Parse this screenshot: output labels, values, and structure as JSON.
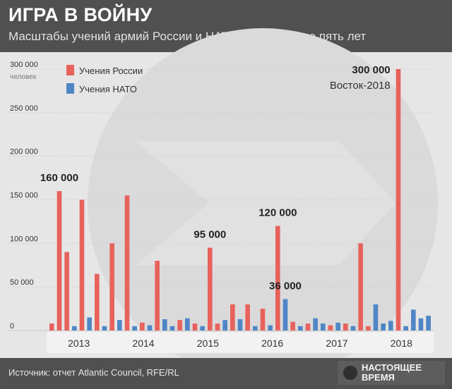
{
  "header": {
    "title": "ИГРА В ВОЙНУ",
    "subtitle": "Масштабы учений армий России и НАТО за последние пять лет"
  },
  "footer": {
    "source": "Источник: отчет Atlantic Council, RFE/RL",
    "brand_line1": "НАСТОЯЩЕЕ",
    "brand_line2": "ВРЕМЯ"
  },
  "colors": {
    "russia": "#e8625c",
    "nato": "#4f86c6",
    "header_bg": "#505050",
    "background": "#e6e6e6"
  },
  "chart_data": {
    "type": "bar",
    "ylim": [
      0,
      300000
    ],
    "y_ticks": [
      "0",
      "50 000",
      "100 000",
      "150 000",
      "200 000",
      "250 000",
      "300 000"
    ],
    "y_tick_values": [
      0,
      50000,
      100000,
      150000,
      200000,
      250000,
      300000
    ],
    "ylabel": "человек",
    "legend": {
      "placement": "top-left",
      "items": [
        {
          "name": "Учения России",
          "color": "#e8625c"
        },
        {
          "name": "Учения НАТО",
          "color": "#4f86c6"
        }
      ]
    },
    "years": [
      "2013",
      "2014",
      "2015",
      "2016",
      "2017",
      "2018"
    ],
    "series": [
      {
        "name": "Учения России",
        "values": [
          8000,
          160000,
          90000,
          150000,
          65000,
          100000,
          155000,
          9000,
          80000,
          12000,
          8000,
          95000,
          8000,
          30000,
          30000,
          25000,
          120000,
          10000,
          8000,
          6000,
          8000,
          100000,
          5000,
          300000
        ]
      },
      {
        "name": "Учения НАТО",
        "values": [
          5000,
          15000,
          5000,
          12000,
          5000,
          6000,
          13000,
          5000,
          14000,
          5000,
          12000,
          13000,
          5000,
          6000,
          36000,
          5000,
          14000,
          8000,
          9000,
          5000,
          30000,
          8000,
          11000,
          5000,
          24000,
          14000,
          17000
        ]
      }
    ],
    "annotations": [
      {
        "label": "160 000",
        "value": 160000
      },
      {
        "label": "95 000",
        "value": 95000
      },
      {
        "label": "36 000",
        "value": 36000
      },
      {
        "label": "120 000",
        "value": 120000
      },
      {
        "label": "300 000",
        "sublabel": "Восток-2018",
        "value": 300000
      }
    ]
  }
}
